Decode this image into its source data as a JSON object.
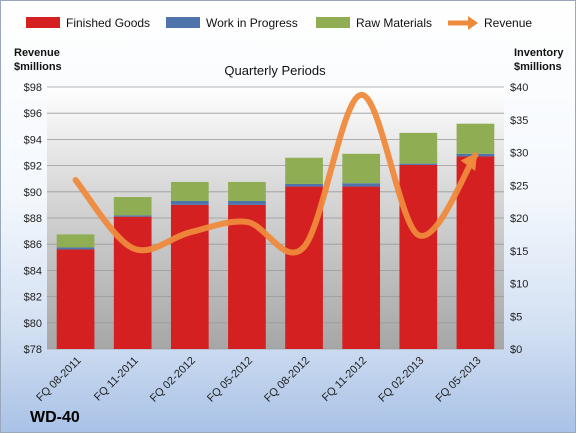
{
  "chart_data": {
    "type": "bar",
    "title": "Quarterly Periods",
    "brand": "WD-40",
    "categories": [
      "FQ 08-2011",
      "FQ 11-2011",
      "FQ 02-2012",
      "FQ 05-2012",
      "FQ 08-2012",
      "FQ 11-2012",
      "FQ 02-2013",
      "FQ 05-2013"
    ],
    "stacked": true,
    "series": [
      {
        "name": "Finished Goods",
        "axis": "right",
        "color": "#d42020",
        "values": [
          15.2,
          20.2,
          22.0,
          22.0,
          24.8,
          24.8,
          28.1,
          29.4
        ]
      },
      {
        "name": "Work in Progress",
        "axis": "right",
        "color": "#4f74ac",
        "values": [
          0.3,
          0.2,
          0.6,
          0.6,
          0.4,
          0.5,
          0.2,
          0.4
        ]
      },
      {
        "name": "Raw Materials",
        "axis": "right",
        "color": "#8fae54",
        "values": [
          2.0,
          2.8,
          2.9,
          2.9,
          4.0,
          4.5,
          4.7,
          4.6
        ]
      },
      {
        "name": "Revenue",
        "axis": "left",
        "type": "line",
        "color": "#ee8a3c",
        "values": [
          90.9,
          85.7,
          86.9,
          87.7,
          85.8,
          97.4,
          86.7,
          92.8
        ]
      }
    ],
    "left_axis": {
      "label_line1": "Revenue",
      "label_line2": "$millions",
      "min": 78,
      "max": 98,
      "step": 2,
      "tick_prefix": "$"
    },
    "right_axis": {
      "label_line1": "Inventory",
      "label_line2": "$millions",
      "min": 0,
      "max": 40,
      "step": 5,
      "tick_prefix": "$"
    },
    "legend_position": "top",
    "grid": true
  }
}
